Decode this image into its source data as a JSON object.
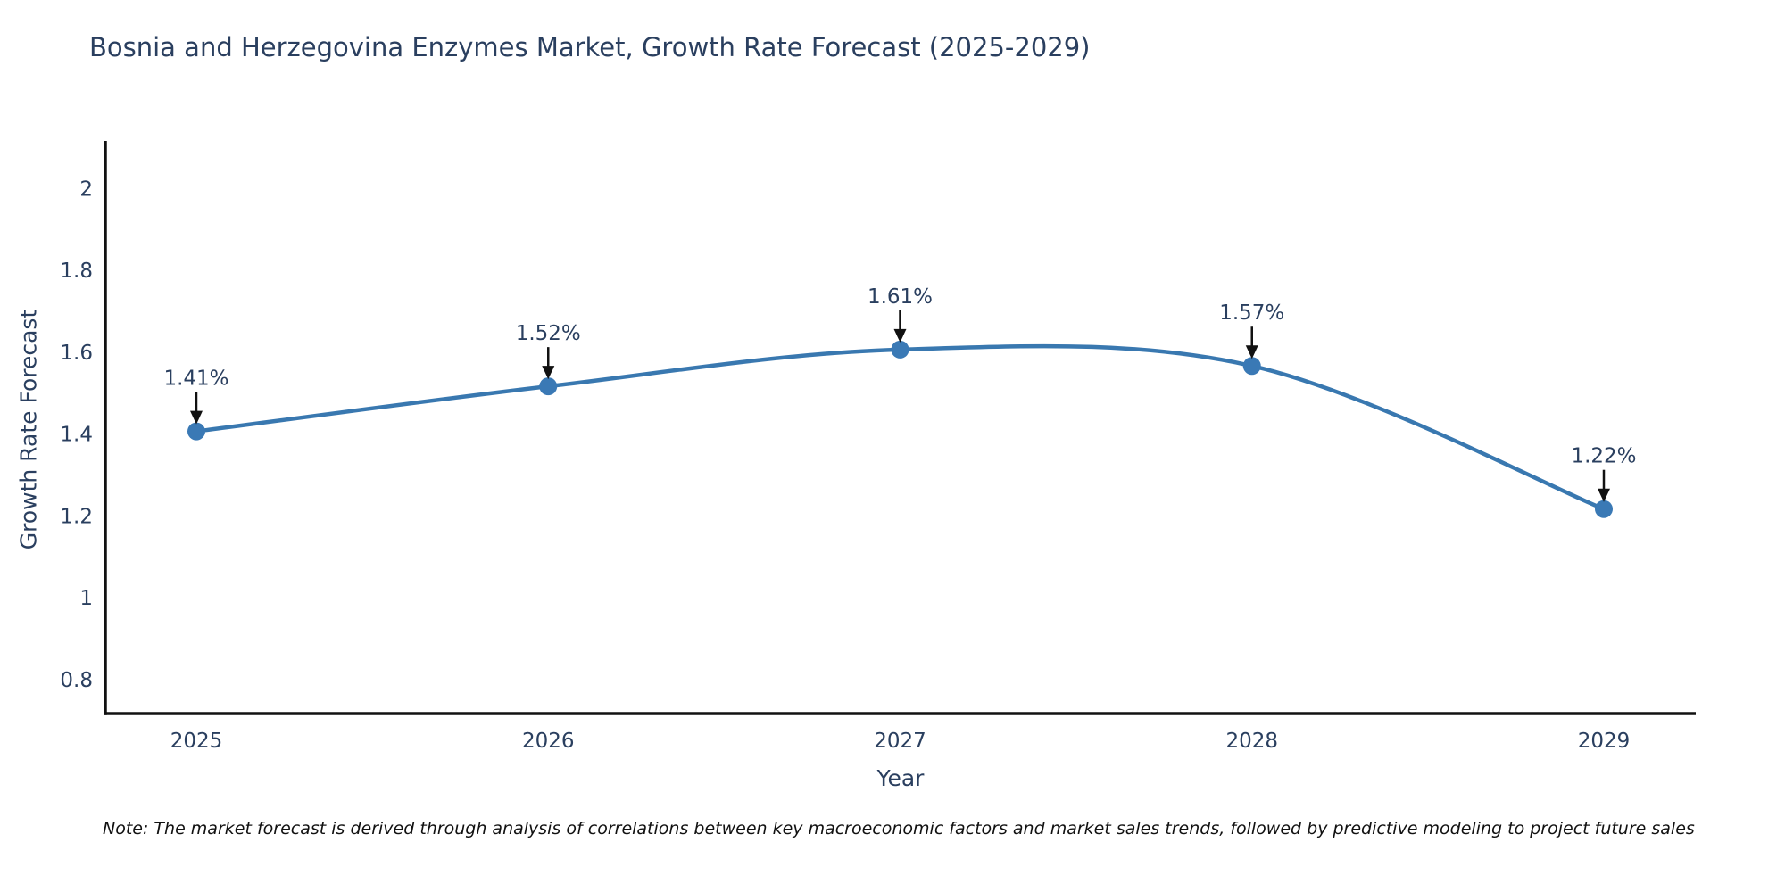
{
  "title": "Bosnia and Herzegovina Enzymes Market, Growth Rate Forecast (2025-2029)",
  "note": "Note: The market forecast is derived through analysis of correlations between key macroeconomic factors and market sales trends, followed by predictive modeling to project future sales",
  "chart_data": {
    "type": "line",
    "title": "Bosnia and Herzegovina Enzymes Market, Growth Rate Forecast (2025-2029)",
    "xlabel": "Year",
    "ylabel": "Growth Rate Forecast",
    "categories": [
      "2025",
      "2026",
      "2027",
      "2028",
      "2029"
    ],
    "series": [
      {
        "name": "Growth Rate Forecast",
        "values": [
          1.41,
          1.52,
          1.61,
          1.57,
          1.22
        ]
      }
    ],
    "point_labels": [
      "1.41%",
      "1.52%",
      "1.61%",
      "1.57%",
      "1.22%"
    ],
    "yticks": [
      0.8,
      1,
      1.2,
      1.4,
      1.6,
      1.8,
      2
    ],
    "ylim": [
      0.72,
      2.12
    ],
    "grid": false,
    "legend_position": "none",
    "line_shape": "spline",
    "colors": {
      "line": "#3978b0",
      "marker": "#3a79b5",
      "axis": "#111111",
      "tick_text": "#2a3f5f",
      "annotation_text": "#2a3f5f",
      "arrow": "#111111",
      "background": "#ffffff"
    }
  }
}
